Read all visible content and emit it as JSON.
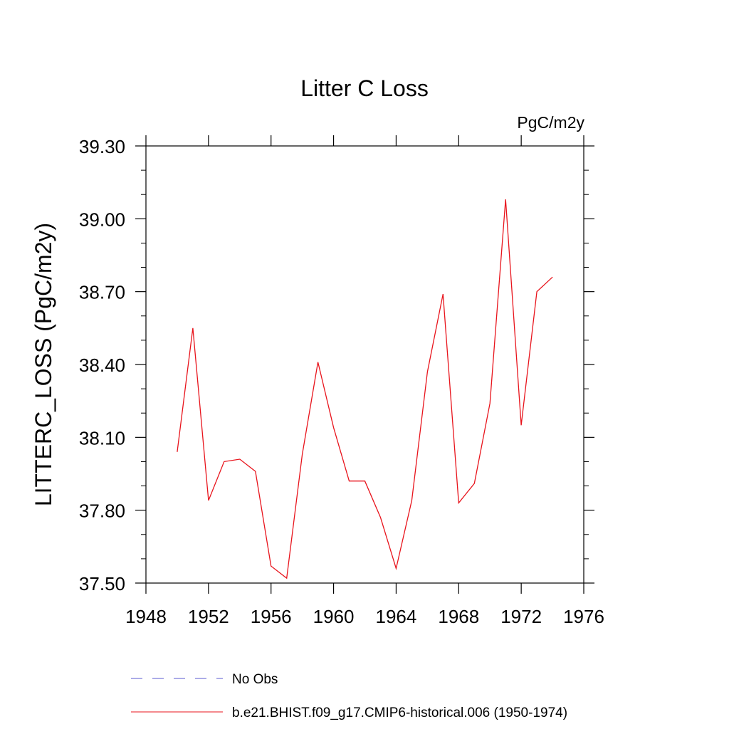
{
  "chart_data": {
    "type": "line",
    "title": "Litter C Loss",
    "units": "PgC/m2y",
    "xlabel": "",
    "ylabel": "LITTERC_LOSS  (PgC/m2y)",
    "xlim": [
      1948,
      1976
    ],
    "ylim": [
      37.5,
      39.3
    ],
    "x_ticks": [
      1948,
      1952,
      1956,
      1960,
      1964,
      1968,
      1972,
      1976
    ],
    "x_tick_labels": [
      "1948",
      "1952",
      "1956",
      "1960",
      "1964",
      "1968",
      "1972",
      "1976"
    ],
    "y_ticks": [
      37.5,
      37.8,
      38.1,
      38.4,
      38.7,
      39.0,
      39.3
    ],
    "y_tick_labels": [
      "37.50",
      "37.80",
      "38.10",
      "38.40",
      "38.70",
      "39.00",
      "39.30"
    ],
    "grid": false,
    "legend_position": "bottom",
    "series": [
      {
        "name": "b.e21.BHIST.f09_g17.CMIP6-historical.006 (1950-1974)",
        "color": "#e8141c",
        "style": "solid",
        "x": [
          1950,
          1951,
          1952,
          1953,
          1954,
          1955,
          1956,
          1957,
          1958,
          1959,
          1960,
          1961,
          1962,
          1963,
          1964,
          1965,
          1966,
          1967,
          1968,
          1969,
          1970,
          1971,
          1972,
          1973,
          1974
        ],
        "values": [
          38.04,
          38.55,
          37.84,
          38.0,
          38.01,
          37.96,
          37.57,
          37.52,
          38.03,
          38.41,
          38.14,
          37.92,
          37.92,
          37.77,
          37.56,
          37.84,
          38.37,
          38.69,
          37.83,
          37.91,
          38.24,
          39.08,
          38.15,
          38.7,
          38.76
        ]
      }
    ],
    "legend": [
      {
        "label": "No Obs",
        "color": "#5a5ad0",
        "style": "dashed"
      },
      {
        "label": "b.e21.BHIST.f09_g17.CMIP6-historical.006 (1950-1974)",
        "color": "#e8141c",
        "style": "solid"
      }
    ]
  }
}
